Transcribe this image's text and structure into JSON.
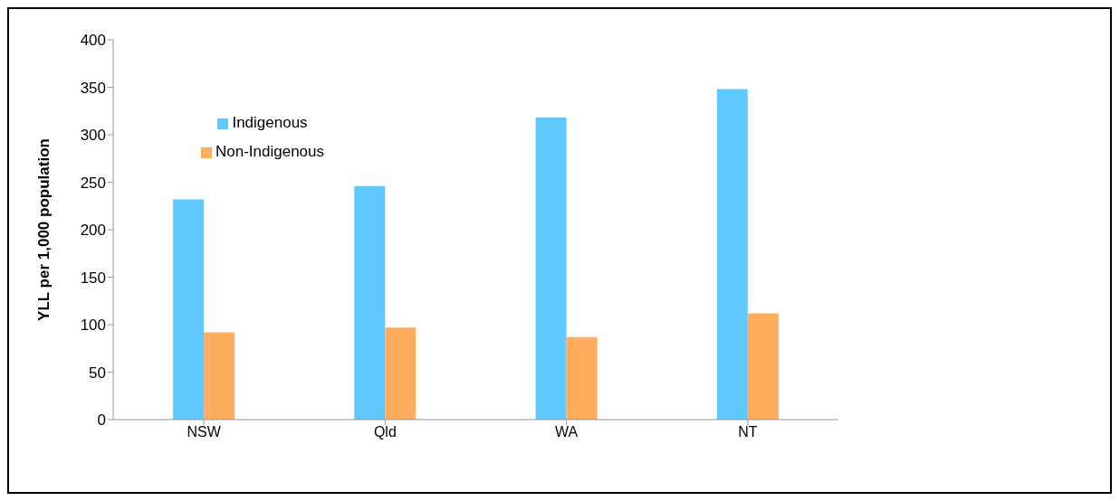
{
  "chart_data": {
    "type": "bar",
    "ylabel": "YLL per 1,000 population",
    "categories": [
      "NSW",
      "Qld",
      "WA",
      "NT"
    ],
    "series": [
      {
        "name": "Indigenous",
        "color": "#5fc9fe",
        "values": [
          232,
          246,
          318,
          348
        ]
      },
      {
        "name": "Non-Indigenous",
        "color": "#ffad5c",
        "values": [
          92,
          97,
          87,
          112
        ]
      }
    ],
    "ylim": [
      0,
      400
    ],
    "yticks": [
      0,
      50,
      100,
      150,
      200,
      250,
      300,
      350,
      400
    ],
    "grid": false,
    "legend": "top left"
  }
}
